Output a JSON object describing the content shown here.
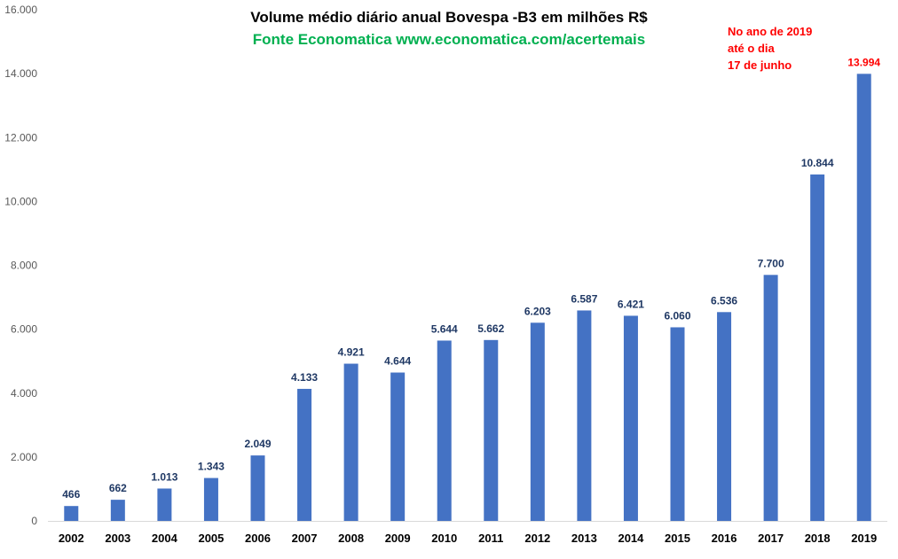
{
  "chart_data": {
    "type": "bar",
    "title": "Volume médio diário anual  Bovespa -B3 em milhões R$",
    "subtitle": "Fonte Economatica www.economatica.com/acertemais",
    "annotation": [
      "No ano de 2019",
      "até o dia",
      "17 de junho"
    ],
    "categories": [
      "2002",
      "2003",
      "2004",
      "2005",
      "2006",
      "2007",
      "2008",
      "2009",
      "2010",
      "2011",
      "2012",
      "2013",
      "2014",
      "2015",
      "2016",
      "2017",
      "2018",
      "2019"
    ],
    "values": [
      466,
      662,
      1013,
      1343,
      2049,
      4133,
      4921,
      4644,
      5644,
      5662,
      6203,
      6587,
      6421,
      6060,
      6536,
      7700,
      10844,
      13994
    ],
    "value_labels": [
      "466",
      "662",
      "1.013",
      "1.343",
      "2.049",
      "4.133",
      "4.921",
      "4.644",
      "5.644",
      "5.662",
      "6.203",
      "6.587",
      "6.421",
      "6.060",
      "6.536",
      "7.700",
      "10.844",
      "13.994"
    ],
    "y_ticks": [
      0,
      2000,
      4000,
      6000,
      8000,
      10000,
      12000,
      14000,
      16000
    ],
    "y_tick_labels": [
      "0",
      "2.000",
      "4.000",
      "6.000",
      "8.000",
      "10.000",
      "12.000",
      "14.000",
      "16.000"
    ],
    "ylim": [
      0,
      16000
    ],
    "xlabel": "",
    "ylabel": "",
    "grid": false,
    "legend": "none",
    "highlight_last_label": true
  },
  "colors": {
    "bar": "#4472C4",
    "value_label": "#1F3864",
    "highlight_label": "#FF0000",
    "title": "#000000",
    "subtitle": "#00B050",
    "annotation": "#FF0000",
    "axis": "#D9D9D9",
    "tick_text": "#595959",
    "category_text": "#000000"
  }
}
